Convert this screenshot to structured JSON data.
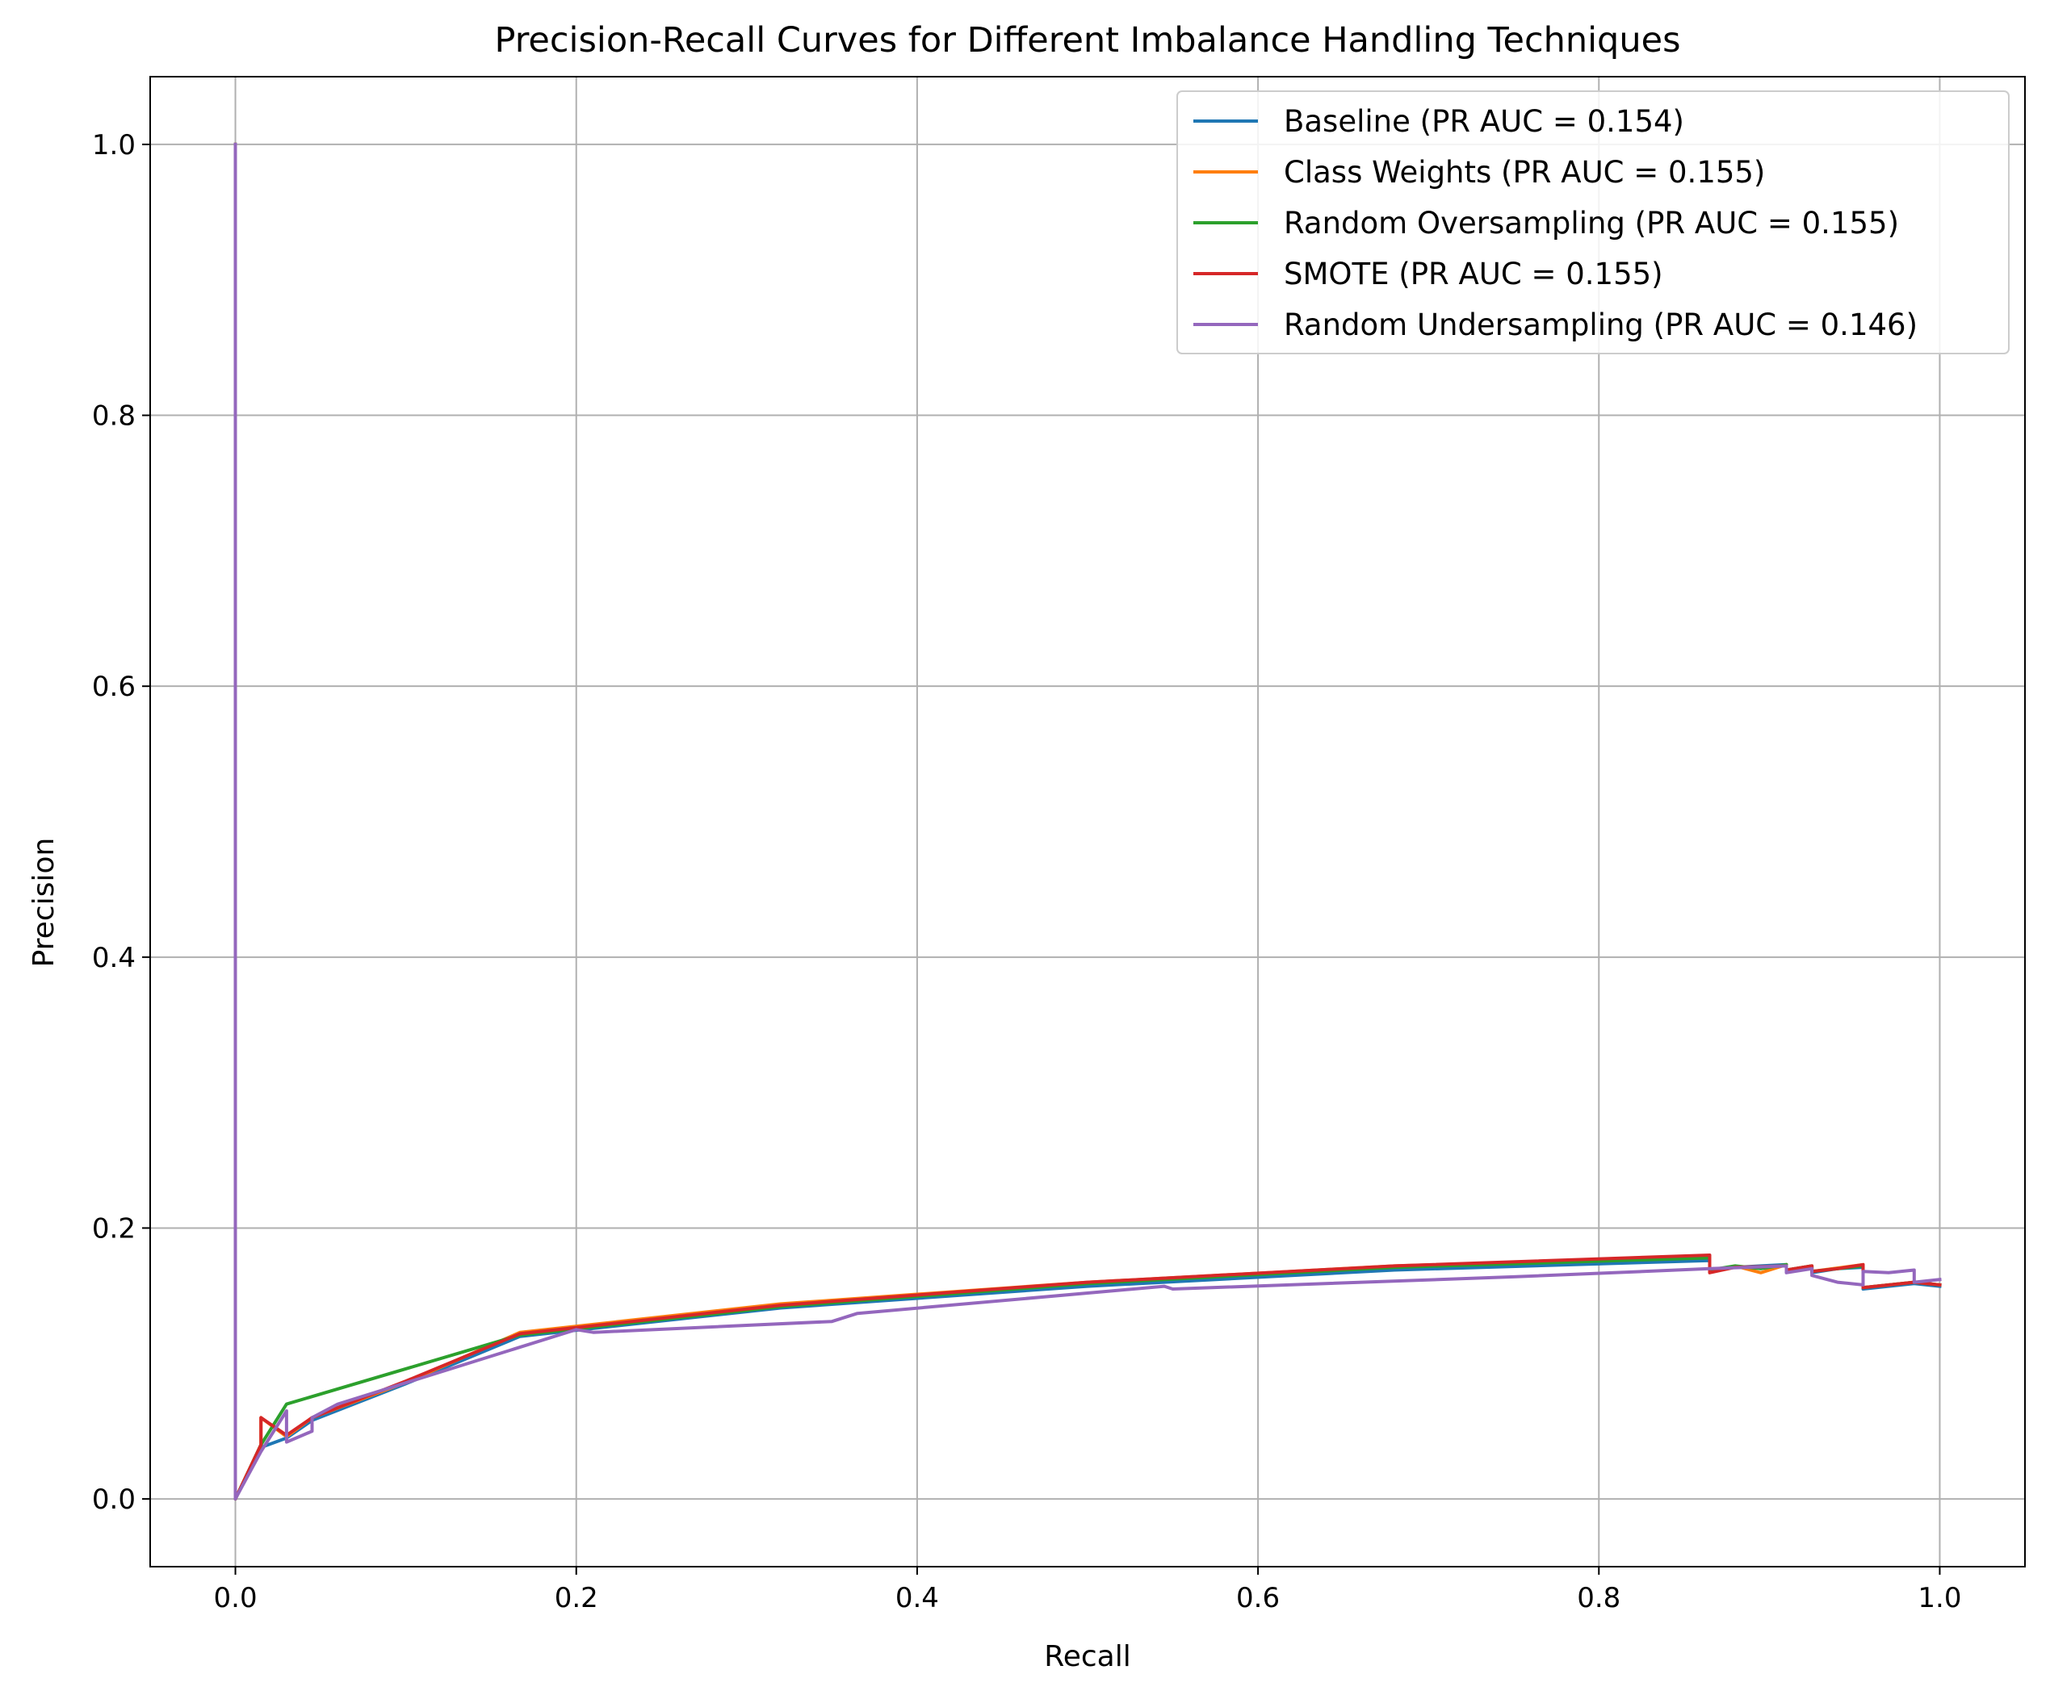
{
  "chart_data": {
    "type": "line",
    "title": "Precision-Recall Curves for Different Imbalance Handling Techniques",
    "xlabel": "Recall",
    "ylabel": "Precision",
    "xlim": [
      -0.05,
      1.05
    ],
    "ylim": [
      -0.05,
      1.05
    ],
    "xticks": [
      0.0,
      0.2,
      0.4,
      0.6,
      0.8,
      1.0
    ],
    "xtick_labels": [
      "0.0",
      "0.2",
      "0.4",
      "0.6",
      "0.8",
      "1.0"
    ],
    "yticks": [
      0.0,
      0.2,
      0.4,
      0.6,
      0.8,
      1.0
    ],
    "ytick_labels": [
      "0.0",
      "0.2",
      "0.4",
      "0.6",
      "0.8",
      "1.0"
    ],
    "grid": true,
    "legend_position": "top-right",
    "series": [
      {
        "name": "Baseline (PR AUC = 0.154)",
        "color": "#1f77b4",
        "points": [
          [
            1.0,
            0.157
          ],
          [
            0.985,
            0.159
          ],
          [
            0.955,
            0.155
          ],
          [
            0.955,
            0.171
          ],
          [
            0.94,
            0.17
          ],
          [
            0.925,
            0.167
          ],
          [
            0.925,
            0.171
          ],
          [
            0.91,
            0.168
          ],
          [
            0.91,
            0.173
          ],
          [
            0.895,
            0.172
          ],
          [
            0.88,
            0.171
          ],
          [
            0.865,
            0.169
          ],
          [
            0.865,
            0.176
          ],
          [
            0.68,
            0.169
          ],
          [
            0.5,
            0.157
          ],
          [
            0.32,
            0.141
          ],
          [
            0.167,
            0.12
          ],
          [
            0.1,
            0.085
          ],
          [
            0.045,
            0.058
          ],
          [
            0.03,
            0.045
          ],
          [
            0.015,
            0.038
          ],
          [
            0.0,
            0.0
          ],
          [
            0.0,
            1.0
          ]
        ]
      },
      {
        "name": "Class Weights (PR AUC = 0.155)",
        "color": "#ff7f0e",
        "points": [
          [
            1.0,
            0.158
          ],
          [
            0.985,
            0.16
          ],
          [
            0.955,
            0.156
          ],
          [
            0.955,
            0.173
          ],
          [
            0.925,
            0.168
          ],
          [
            0.925,
            0.172
          ],
          [
            0.91,
            0.169
          ],
          [
            0.91,
            0.173
          ],
          [
            0.895,
            0.167
          ],
          [
            0.88,
            0.172
          ],
          [
            0.865,
            0.168
          ],
          [
            0.865,
            0.179
          ],
          [
            0.68,
            0.172
          ],
          [
            0.5,
            0.16
          ],
          [
            0.32,
            0.144
          ],
          [
            0.167,
            0.123
          ],
          [
            0.1,
            0.086
          ],
          [
            0.045,
            0.06
          ],
          [
            0.03,
            0.046
          ],
          [
            0.015,
            0.06
          ],
          [
            0.015,
            0.04
          ],
          [
            0.0,
            0.0
          ],
          [
            0.0,
            1.0
          ]
        ]
      },
      {
        "name": "Random Oversampling (PR AUC = 0.155)",
        "color": "#2ca02c",
        "points": [
          [
            1.0,
            0.158
          ],
          [
            0.985,
            0.16
          ],
          [
            0.955,
            0.156
          ],
          [
            0.955,
            0.172
          ],
          [
            0.925,
            0.168
          ],
          [
            0.925,
            0.172
          ],
          [
            0.91,
            0.169
          ],
          [
            0.91,
            0.173
          ],
          [
            0.895,
            0.17
          ],
          [
            0.88,
            0.172
          ],
          [
            0.865,
            0.169
          ],
          [
            0.865,
            0.178
          ],
          [
            0.68,
            0.171
          ],
          [
            0.5,
            0.159
          ],
          [
            0.32,
            0.142
          ],
          [
            0.167,
            0.121
          ],
          [
            0.03,
            0.07
          ],
          [
            0.015,
            0.04
          ],
          [
            0.0,
            0.0
          ],
          [
            0.0,
            1.0
          ]
        ]
      },
      {
        "name": "SMOTE (PR AUC = 0.155)",
        "color": "#d62728",
        "points": [
          [
            1.0,
            0.158
          ],
          [
            0.985,
            0.16
          ],
          [
            0.955,
            0.156
          ],
          [
            0.955,
            0.173
          ],
          [
            0.94,
            0.17
          ],
          [
            0.925,
            0.168
          ],
          [
            0.925,
            0.172
          ],
          [
            0.91,
            0.169
          ],
          [
            0.91,
            0.172
          ],
          [
            0.88,
            0.171
          ],
          [
            0.865,
            0.167
          ],
          [
            0.865,
            0.18
          ],
          [
            0.68,
            0.172
          ],
          [
            0.5,
            0.16
          ],
          [
            0.32,
            0.143
          ],
          [
            0.167,
            0.122
          ],
          [
            0.1,
            0.087
          ],
          [
            0.045,
            0.06
          ],
          [
            0.03,
            0.047
          ],
          [
            0.015,
            0.06
          ],
          [
            0.015,
            0.04
          ],
          [
            0.0,
            0.0
          ],
          [
            0.0,
            1.0
          ]
        ]
      },
      {
        "name": "Random Undersampling (PR AUC = 0.146)",
        "color": "#9467bd",
        "points": [
          [
            1.0,
            0.162
          ],
          [
            0.985,
            0.16
          ],
          [
            0.985,
            0.169
          ],
          [
            0.97,
            0.167
          ],
          [
            0.955,
            0.168
          ],
          [
            0.955,
            0.158
          ],
          [
            0.94,
            0.16
          ],
          [
            0.925,
            0.165
          ],
          [
            0.925,
            0.17
          ],
          [
            0.91,
            0.167
          ],
          [
            0.91,
            0.172
          ],
          [
            0.865,
            0.17
          ],
          [
            0.75,
            0.164
          ],
          [
            0.55,
            0.155
          ],
          [
            0.545,
            0.157
          ],
          [
            0.365,
            0.137
          ],
          [
            0.35,
            0.131
          ],
          [
            0.21,
            0.123
          ],
          [
            0.2,
            0.125
          ],
          [
            0.06,
            0.07
          ],
          [
            0.045,
            0.06
          ],
          [
            0.045,
            0.05
          ],
          [
            0.03,
            0.042
          ],
          [
            0.03,
            0.065
          ],
          [
            0.015,
            0.035
          ],
          [
            0.0,
            0.0
          ],
          [
            0.0,
            1.0
          ]
        ]
      }
    ]
  }
}
